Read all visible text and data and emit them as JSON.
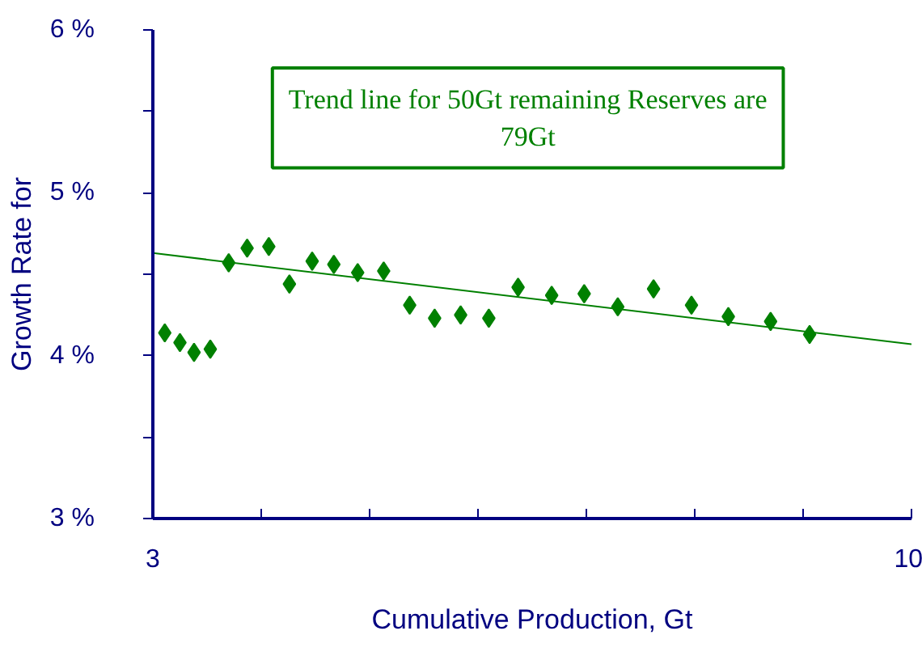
{
  "chart_data": {
    "type": "scatter",
    "xlabel": "Cumulative Production, Gt",
    "ylabel": "Growth Rate for",
    "annotations": [
      "Trend line for 50Gt remaining Reserves are\n79Gt"
    ],
    "xlim": [
      3,
      10
    ],
    "xticks": [
      3,
      {
        "value": 4,
        "label": null
      },
      {
        "value": 5,
        "label": null
      },
      {
        "value": 6,
        "label": null
      },
      {
        "value": 7,
        "label": null
      },
      {
        "value": 8,
        "label": null
      },
      {
        "value": 9,
        "label": null
      },
      10
    ],
    "ylim": [
      3,
      6
    ],
    "yticks": [
      {
        "value": 3,
        "label": "3 %"
      },
      {
        "value": 3.5,
        "label": null
      },
      {
        "value": 4,
        "label": "4 %"
      },
      {
        "value": 4.5,
        "label": null
      },
      {
        "value": 5,
        "label": "5 %"
      },
      {
        "value": 5.5,
        "label": null
      },
      {
        "value": 6,
        "label": "6 %"
      }
    ],
    "grid": false,
    "marker": "diamond",
    "series": [
      {
        "color": "#008000",
        "x": [
          3.11,
          3.25,
          3.38,
          3.53
        ],
        "values": [
          4.14,
          4.08,
          4.02,
          4.04
        ]
      },
      {
        "color": "#008000",
        "x": [
          3.7,
          3.87,
          4.07,
          4.26,
          4.47,
          4.67,
          4.89,
          5.13,
          5.37,
          5.6,
          5.84,
          6.1,
          6.37,
          6.68,
          6.98,
          7.29,
          7.62,
          7.97,
          8.31,
          8.7,
          9.06
        ],
        "values": [
          4.57,
          4.66,
          4.67,
          4.44,
          4.58,
          4.56,
          4.51,
          4.52,
          4.31,
          4.23,
          4.25,
          4.23,
          4.42,
          4.37,
          4.38,
          4.3,
          4.41,
          4.31,
          4.24,
          4.21,
          4.13
        ]
      },
      {
        "type": "line",
        "marker": "none",
        "color": "#008000",
        "x": [
          3,
          10
        ],
        "values": [
          4.63,
          4.07
        ]
      }
    ]
  }
}
